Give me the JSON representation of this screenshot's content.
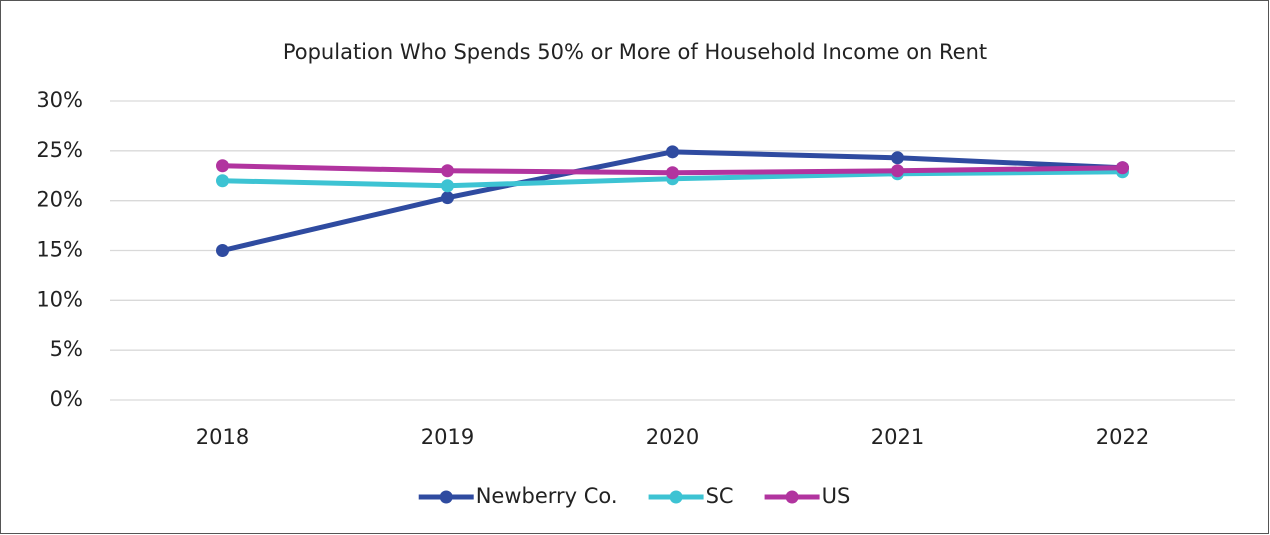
{
  "chart_data": {
    "type": "line",
    "title": "Population Who Spends 50% or More of Household Income on Rent",
    "categories": [
      "2018",
      "2019",
      "2020",
      "2021",
      "2022"
    ],
    "series": [
      {
        "name": "Newberry Co.",
        "color": "#2f4ba0",
        "values": [
          15.0,
          20.3,
          24.9,
          24.3,
          23.3
        ]
      },
      {
        "name": "SC",
        "color": "#3dc3d3",
        "values": [
          22.0,
          21.5,
          22.2,
          22.7,
          22.9
        ]
      },
      {
        "name": "US",
        "color": "#b1349f",
        "values": [
          23.5,
          23.0,
          22.8,
          23.0,
          23.3
        ]
      }
    ],
    "ylim": [
      0,
      30
    ],
    "yticks": [
      {
        "value": 0,
        "label": "0%"
      },
      {
        "value": 5,
        "label": "5%"
      },
      {
        "value": 10,
        "label": "10%"
      },
      {
        "value": 15,
        "label": "15%"
      },
      {
        "value": 20,
        "label": "20%"
      },
      {
        "value": 25,
        "label": "25%"
      },
      {
        "value": 30,
        "label": "30%"
      }
    ],
    "grid": true,
    "legend": "bottom"
  }
}
